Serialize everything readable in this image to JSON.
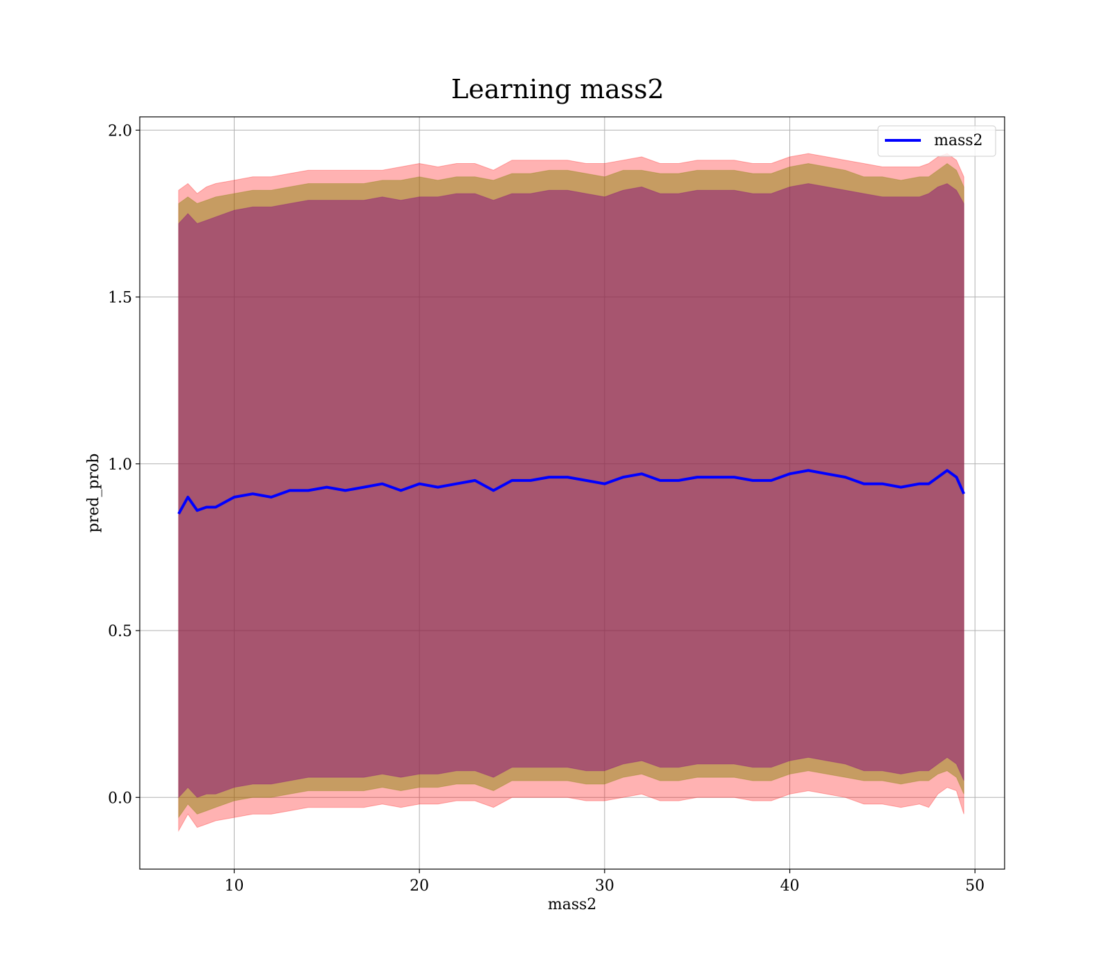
{
  "chart_data": {
    "type": "line",
    "title": "Learning mass2",
    "xlabel": "mass2",
    "ylabel": "pred_prob",
    "xlim": [
      4.9,
      51.6
    ],
    "ylim": [
      -0.215,
      2.04
    ],
    "xticks": [
      10,
      20,
      30,
      40,
      50
    ],
    "yticks": [
      0.0,
      0.5,
      1.0,
      1.5,
      2.0
    ],
    "xtick_labels": [
      "10",
      "20",
      "30",
      "40",
      "50"
    ],
    "ytick_labels": [
      "0.0",
      "0.5",
      "1.0",
      "1.5",
      "2.0"
    ],
    "grid": true,
    "legend": {
      "placement": "upper-right",
      "entries": [
        "mass2"
      ]
    },
    "colors": {
      "line": "#0000ff",
      "band_outer": "#ff0000",
      "band_mid": "#808000",
      "band_inner": "#800080",
      "grid": "#b0b0b0"
    },
    "series": [
      {
        "name": "mass2",
        "x": [
          7.0,
          7.5,
          8.0,
          8.5,
          9.0,
          10.0,
          11.0,
          12.0,
          13.0,
          14.0,
          15.0,
          16.0,
          17.0,
          18.0,
          19.0,
          20.0,
          21.0,
          22.0,
          23.0,
          24.0,
          25.0,
          26.0,
          27.0,
          28.0,
          29.0,
          30.0,
          31.0,
          32.0,
          33.0,
          34.0,
          35.0,
          36.0,
          37.0,
          38.0,
          39.0,
          40.0,
          41.0,
          42.0,
          43.0,
          44.0,
          45.0,
          46.0,
          47.0,
          47.5,
          48.0,
          48.5,
          49.0,
          49.4
        ],
        "values": [
          0.85,
          0.9,
          0.86,
          0.87,
          0.87,
          0.9,
          0.91,
          0.9,
          0.92,
          0.92,
          0.93,
          0.92,
          0.93,
          0.94,
          0.92,
          0.94,
          0.93,
          0.94,
          0.95,
          0.92,
          0.95,
          0.95,
          0.96,
          0.96,
          0.95,
          0.94,
          0.96,
          0.97,
          0.95,
          0.95,
          0.96,
          0.96,
          0.96,
          0.95,
          0.95,
          0.97,
          0.98,
          0.97,
          0.96,
          0.94,
          0.94,
          0.93,
          0.94,
          0.94,
          0.96,
          0.98,
          0.96,
          0.91
        ],
        "band_outer_upper": [
          1.82,
          1.84,
          1.81,
          1.83,
          1.84,
          1.85,
          1.86,
          1.86,
          1.87,
          1.88,
          1.88,
          1.88,
          1.88,
          1.88,
          1.89,
          1.9,
          1.89,
          1.9,
          1.9,
          1.88,
          1.91,
          1.91,
          1.91,
          1.91,
          1.9,
          1.9,
          1.91,
          1.92,
          1.9,
          1.9,
          1.91,
          1.91,
          1.91,
          1.9,
          1.9,
          1.92,
          1.93,
          1.92,
          1.91,
          1.9,
          1.89,
          1.89,
          1.89,
          1.9,
          1.92,
          1.93,
          1.91,
          1.86
        ],
        "band_outer_lower": [
          -0.1,
          -0.05,
          -0.09,
          -0.08,
          -0.07,
          -0.06,
          -0.05,
          -0.05,
          -0.04,
          -0.03,
          -0.03,
          -0.03,
          -0.03,
          -0.02,
          -0.03,
          -0.02,
          -0.02,
          -0.01,
          -0.01,
          -0.03,
          0.0,
          0.0,
          0.0,
          0.0,
          -0.01,
          -0.01,
          0.0,
          0.01,
          -0.01,
          -0.01,
          0.0,
          0.0,
          0.0,
          -0.01,
          -0.01,
          0.01,
          0.02,
          0.01,
          0.0,
          -0.02,
          -0.02,
          -0.03,
          -0.02,
          -0.03,
          0.01,
          0.03,
          0.02,
          -0.05
        ],
        "band_mid_upper": [
          1.78,
          1.8,
          1.78,
          1.79,
          1.8,
          1.81,
          1.82,
          1.82,
          1.83,
          1.84,
          1.84,
          1.84,
          1.84,
          1.85,
          1.85,
          1.86,
          1.85,
          1.86,
          1.86,
          1.85,
          1.87,
          1.87,
          1.88,
          1.88,
          1.87,
          1.86,
          1.88,
          1.88,
          1.87,
          1.87,
          1.88,
          1.88,
          1.88,
          1.87,
          1.87,
          1.89,
          1.9,
          1.89,
          1.88,
          1.86,
          1.86,
          1.85,
          1.86,
          1.86,
          1.88,
          1.9,
          1.88,
          1.83
        ],
        "band_mid_lower": [
          -0.06,
          -0.02,
          -0.05,
          -0.04,
          -0.03,
          -0.01,
          0.0,
          0.0,
          0.01,
          0.02,
          0.02,
          0.02,
          0.02,
          0.03,
          0.02,
          0.03,
          0.03,
          0.04,
          0.04,
          0.02,
          0.05,
          0.05,
          0.05,
          0.05,
          0.04,
          0.04,
          0.06,
          0.07,
          0.05,
          0.05,
          0.06,
          0.06,
          0.06,
          0.05,
          0.05,
          0.07,
          0.08,
          0.07,
          0.06,
          0.05,
          0.05,
          0.04,
          0.05,
          0.05,
          0.07,
          0.08,
          0.06,
          0.01
        ],
        "band_inner_upper": [
          1.72,
          1.75,
          1.72,
          1.73,
          1.74,
          1.76,
          1.77,
          1.77,
          1.78,
          1.79,
          1.79,
          1.79,
          1.79,
          1.8,
          1.79,
          1.8,
          1.8,
          1.81,
          1.81,
          1.79,
          1.81,
          1.81,
          1.82,
          1.82,
          1.81,
          1.8,
          1.82,
          1.83,
          1.81,
          1.81,
          1.82,
          1.82,
          1.82,
          1.81,
          1.81,
          1.83,
          1.84,
          1.83,
          1.82,
          1.81,
          1.8,
          1.8,
          1.8,
          1.81,
          1.83,
          1.84,
          1.82,
          1.78
        ],
        "band_inner_lower": [
          0.0,
          0.03,
          0.0,
          0.01,
          0.01,
          0.03,
          0.04,
          0.04,
          0.05,
          0.06,
          0.06,
          0.06,
          0.06,
          0.07,
          0.06,
          0.07,
          0.07,
          0.08,
          0.08,
          0.06,
          0.09,
          0.09,
          0.09,
          0.09,
          0.08,
          0.08,
          0.1,
          0.11,
          0.09,
          0.09,
          0.1,
          0.1,
          0.1,
          0.09,
          0.09,
          0.11,
          0.12,
          0.11,
          0.1,
          0.08,
          0.08,
          0.07,
          0.08,
          0.08,
          0.1,
          0.12,
          0.1,
          0.05
        ]
      }
    ]
  }
}
